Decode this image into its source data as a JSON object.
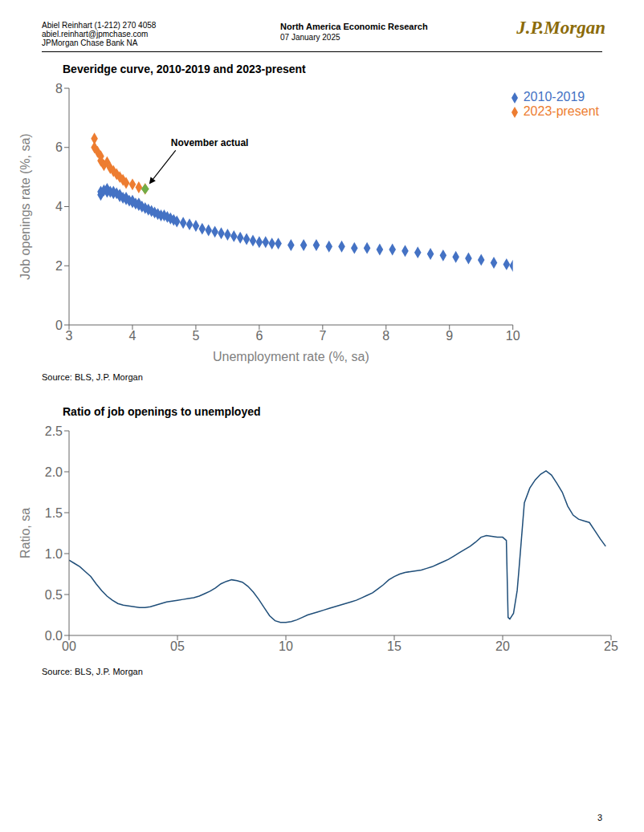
{
  "annotations": [
    {
      "text": "Abiel Reinhart  (1-212) 270 4058"
    },
    {
      "text": "abiel.reinhart@jpmchase.com"
    },
    {
      "text": "JPMorgan Chase Bank NA"
    },
    {
      "text": "North America Economic Research"
    },
    {
      "text": "07 January 2025"
    },
    {
      "text": "J.P.Morgan",
      "color": "#8B6B0A"
    },
    {
      "text": "3"
    }
  ],
  "chart_data": [
    {
      "type": "scatter",
      "title": "Beveridge curve, 2010-2019 and 2023-present",
      "xlabel": "Unemployment rate (%, sa)",
      "ylabel": "Job openings rate (%, sa)",
      "xlim": [
        3,
        10
      ],
      "ylim": [
        0,
        8
      ],
      "xticks": [
        3,
        4,
        5,
        6,
        7,
        8,
        9,
        10
      ],
      "yticks": [
        0,
        2,
        4,
        6,
        8
      ],
      "grid": false,
      "legend": "upper right",
      "marker": "diamond",
      "series": [
        {
          "name": "2010-2019",
          "color": "#4472c4",
          "x": [
            3.5,
            3.5,
            3.55,
            3.6,
            3.6,
            3.65,
            3.7,
            3.7,
            3.75,
            3.8,
            3.8,
            3.85,
            3.9,
            3.9,
            3.95,
            4.0,
            4.0,
            4.05,
            4.1,
            4.1,
            4.15,
            4.2,
            4.25,
            4.3,
            4.35,
            4.4,
            4.45,
            4.5,
            4.55,
            4.6,
            4.65,
            4.7,
            4.8,
            4.9,
            5.0,
            5.1,
            5.2,
            5.3,
            5.4,
            5.5,
            5.6,
            5.7,
            5.8,
            5.9,
            6.0,
            6.1,
            6.2,
            6.3,
            6.5,
            6.7,
            6.9,
            7.1,
            7.3,
            7.5,
            7.7,
            7.9,
            8.1,
            8.3,
            8.5,
            8.7,
            8.9,
            9.1,
            9.3,
            9.5,
            9.7,
            9.9,
            10.0
          ],
          "values": [
            4.4,
            4.5,
            4.55,
            4.5,
            4.6,
            4.5,
            4.45,
            4.5,
            4.45,
            4.35,
            4.4,
            4.3,
            4.25,
            4.3,
            4.2,
            4.15,
            4.2,
            4.1,
            4.05,
            4.1,
            4.0,
            3.95,
            3.9,
            3.85,
            3.8,
            3.75,
            3.7,
            3.7,
            3.65,
            3.6,
            3.55,
            3.5,
            3.45,
            3.4,
            3.35,
            3.25,
            3.2,
            3.15,
            3.1,
            3.05,
            3.0,
            2.95,
            2.9,
            2.85,
            2.8,
            2.8,
            2.75,
            2.75,
            2.7,
            2.7,
            2.7,
            2.65,
            2.65,
            2.6,
            2.6,
            2.55,
            2.55,
            2.5,
            2.45,
            2.4,
            2.35,
            2.3,
            2.25,
            2.2,
            2.1,
            2.05,
            2.0
          ]
        },
        {
          "name": "2023-present",
          "color": "#ed7d31",
          "x": [
            3.4,
            3.4,
            3.45,
            3.5,
            3.5,
            3.55,
            3.6,
            3.65,
            3.7,
            3.75,
            3.8,
            3.85,
            3.9,
            4.0,
            4.1,
            4.2
          ],
          "values": [
            6.3,
            6.0,
            5.85,
            5.7,
            5.55,
            5.4,
            5.5,
            5.3,
            5.2,
            5.1,
            5.0,
            4.9,
            4.8,
            4.75,
            4.65,
            4.6
          ]
        }
      ],
      "annotations": [
        {
          "text": "November actual",
          "x": 4.2,
          "y": 4.6,
          "color": "#70ad47"
        },
        {
          "text": "Source: BLS, J.P. Morgan"
        }
      ]
    },
    {
      "type": "line",
      "title": "Ratio of job openings to unemployed",
      "ylabel": "Ratio, sa",
      "xlim": [
        2000,
        2025
      ],
      "ylim": [
        0,
        2.5
      ],
      "xticks": [
        {
          "value": 2000,
          "label": "00"
        },
        {
          "value": 2005,
          "label": "05"
        },
        {
          "value": 2010,
          "label": "10"
        },
        {
          "value": 2015,
          "label": "15"
        },
        {
          "value": 2020,
          "label": "20"
        },
        {
          "value": 2025,
          "label": "25"
        }
      ],
      "yticks": [
        {
          "value": 0,
          "label": "0.0"
        },
        0.5,
        {
          "value": 1,
          "label": "1.0"
        },
        1.5,
        {
          "value": 2,
          "label": "2.0"
        },
        2.5
      ],
      "grid": false,
      "color": "#1f4e79",
      "x": [
        2000.0,
        2000.25,
        2000.5,
        2000.75,
        2001.0,
        2001.25,
        2001.5,
        2001.75,
        2002.0,
        2002.25,
        2002.5,
        2002.75,
        2003.0,
        2003.25,
        2003.5,
        2003.75,
        2004.0,
        2004.25,
        2004.5,
        2004.75,
        2005.0,
        2005.25,
        2005.5,
        2005.75,
        2006.0,
        2006.25,
        2006.5,
        2006.75,
        2007.0,
        2007.25,
        2007.5,
        2007.75,
        2008.0,
        2008.25,
        2008.5,
        2008.75,
        2009.0,
        2009.25,
        2009.5,
        2009.75,
        2010.0,
        2010.25,
        2010.5,
        2010.75,
        2011.0,
        2011.25,
        2011.5,
        2011.75,
        2012.0,
        2012.25,
        2012.5,
        2012.75,
        2013.0,
        2013.25,
        2013.5,
        2013.75,
        2014.0,
        2014.25,
        2014.5,
        2014.75,
        2015.0,
        2015.25,
        2015.5,
        2015.75,
        2016.0,
        2016.25,
        2016.5,
        2016.75,
        2017.0,
        2017.25,
        2017.5,
        2017.75,
        2018.0,
        2018.25,
        2018.5,
        2018.75,
        2019.0,
        2019.25,
        2019.5,
        2019.75,
        2020.0,
        2020.17,
        2020.25,
        2020.33,
        2020.5,
        2020.67,
        2020.75,
        2021.0,
        2021.25,
        2021.5,
        2021.75,
        2022.0,
        2022.25,
        2022.5,
        2022.75,
        2023.0,
        2023.25,
        2023.5,
        2023.75,
        2024.0,
        2024.25,
        2024.5,
        2024.75
      ],
      "values": [
        0.92,
        0.88,
        0.84,
        0.78,
        0.72,
        0.63,
        0.55,
        0.48,
        0.43,
        0.39,
        0.37,
        0.36,
        0.35,
        0.34,
        0.34,
        0.35,
        0.37,
        0.39,
        0.41,
        0.42,
        0.43,
        0.44,
        0.45,
        0.46,
        0.48,
        0.51,
        0.54,
        0.58,
        0.63,
        0.66,
        0.68,
        0.67,
        0.65,
        0.6,
        0.53,
        0.44,
        0.34,
        0.24,
        0.18,
        0.16,
        0.16,
        0.17,
        0.19,
        0.22,
        0.25,
        0.27,
        0.29,
        0.31,
        0.33,
        0.35,
        0.37,
        0.39,
        0.41,
        0.43,
        0.46,
        0.49,
        0.52,
        0.57,
        0.62,
        0.68,
        0.72,
        0.75,
        0.77,
        0.78,
        0.79,
        0.8,
        0.82,
        0.84,
        0.87,
        0.9,
        0.93,
        0.97,
        1.01,
        1.05,
        1.09,
        1.14,
        1.2,
        1.22,
        1.21,
        1.2,
        1.2,
        1.16,
        0.22,
        0.2,
        0.27,
        0.55,
        0.8,
        1.62,
        1.8,
        1.9,
        1.97,
        2.01,
        1.96,
        1.86,
        1.75,
        1.58,
        1.47,
        1.42,
        1.4,
        1.38,
        1.28,
        1.18,
        1.09
      ],
      "annotations": [
        {
          "text": "Source: BLS, J.P. Morgan"
        }
      ]
    }
  ]
}
